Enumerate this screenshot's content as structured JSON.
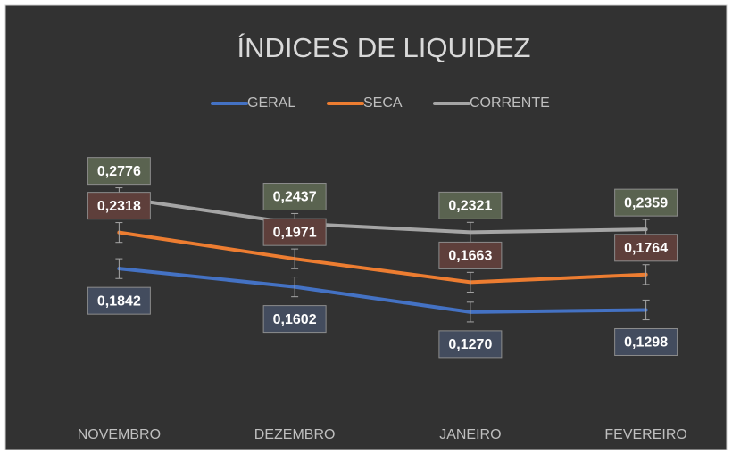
{
  "chart_data": {
    "type": "line",
    "title": "ÍNDICES DE LIQUIDEZ",
    "categories": [
      "NOVEMBRO",
      "DEZEMBRO",
      "JANEIRO",
      "FEVEREIRO"
    ],
    "ylim": [
      0,
      0.35
    ],
    "legend": "top",
    "series": [
      {
        "name": "GERAL",
        "color": "#4472c4",
        "label_color": "#434c5e",
        "label_position": "below",
        "values": [
          0.1842,
          0.1602,
          0.127,
          0.1298
        ],
        "value_labels": [
          "0,1842",
          "0,1602",
          "0,1270",
          "0,1298"
        ],
        "errors": [
          0.013,
          0.013,
          0.013,
          0.013
        ]
      },
      {
        "name": "SECA",
        "color": "#ed7d31",
        "label_color": "#5e3f3b",
        "label_position": "above",
        "values": [
          0.2318,
          0.1971,
          0.1663,
          0.1764
        ],
        "value_labels": [
          "0,2318",
          "0,1971",
          "0,1663",
          "0,1764"
        ],
        "errors": [
          0.013,
          0.013,
          0.013,
          0.013
        ]
      },
      {
        "name": "CORRENTE",
        "color": "#a5a5a5",
        "label_color": "#5a6350",
        "label_position": "above",
        "values": [
          0.2776,
          0.2437,
          0.2321,
          0.2359
        ],
        "value_labels": [
          "0,2776",
          "0,2437",
          "0,2321",
          "0,2359"
        ],
        "errors": [
          0.013,
          0.013,
          0.013,
          0.013
        ]
      }
    ]
  }
}
